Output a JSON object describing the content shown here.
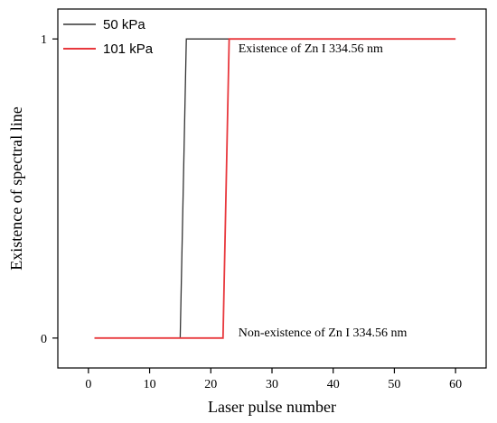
{
  "chart_data": {
    "type": "line",
    "title": "",
    "xlabel": "Laser pulse number",
    "ylabel": "Existence of spectral line",
    "xlim": [
      -5,
      65
    ],
    "ylim": [
      -0.1,
      1.1
    ],
    "xticks": [
      0,
      10,
      20,
      30,
      40,
      50,
      60
    ],
    "yticks": [
      0,
      1
    ],
    "grid": false,
    "legend_position": "top-left",
    "series": [
      {
        "name": "50 kPa",
        "color": "#333333",
        "x": [
          1,
          15,
          16,
          60
        ],
        "y": [
          0,
          0,
          1,
          1
        ]
      },
      {
        "name": "101 kPa",
        "color": "#e8383d",
        "x": [
          1,
          22,
          23,
          60
        ],
        "y": [
          0,
          0,
          1,
          1
        ]
      }
    ],
    "annotations": [
      {
        "text": "Existence of Zn I 334.56 nm",
        "x": 24.5,
        "y": 0.955
      },
      {
        "text": "Non-existence of Zn I 334.56 nm",
        "x": 24.5,
        "y": 0.005
      }
    ]
  }
}
